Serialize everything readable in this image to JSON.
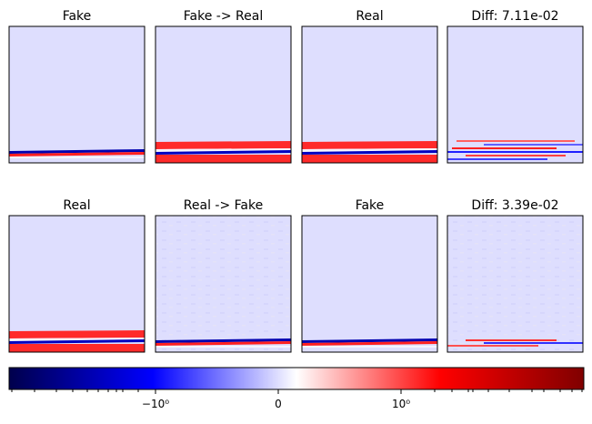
{
  "chart_data": {
    "type": "heatmap",
    "layout": "2 rows x 4 columns of image panels with shared diverging colorbar",
    "colormap": "seismic",
    "background_value_color": "#dedefe",
    "panels": [
      {
        "title": "Fake",
        "row": 1,
        "col": 1,
        "content": "thin blue/red stripe near bottom"
      },
      {
        "title": "Fake -> Real",
        "row": 1,
        "col": 2,
        "content": "red band with blue stripe near bottom"
      },
      {
        "title": "Real",
        "row": 1,
        "col": 3,
        "content": "red band with blue stripe near bottom"
      },
      {
        "title": "Diff: 7.11e-02",
        "row": 1,
        "col": 4,
        "content": "scattered red/blue residuals near bottom"
      },
      {
        "title": "Real",
        "row": 2,
        "col": 1,
        "content": "red band with blue stripe near bottom"
      },
      {
        "title": "Real -> Fake",
        "row": 2,
        "col": 2,
        "content": "faint texture, thin blue/red stripe near bottom"
      },
      {
        "title": "Fake",
        "row": 2,
        "col": 3,
        "content": "thin blue/red stripe near bottom"
      },
      {
        "title": "Diff: 3.39e-02",
        "row": 2,
        "col": 4,
        "content": "faint texture, scattered residuals near bottom"
      }
    ],
    "colorbar": {
      "scale": "symlog",
      "tick_labels": [
        "−10⁰",
        "0",
        "10⁰"
      ],
      "tick_values": [
        -1,
        0,
        1
      ],
      "colors": [
        "#00004c",
        "#0000ff",
        "#ffffff",
        "#ff0000",
        "#800000"
      ]
    }
  }
}
